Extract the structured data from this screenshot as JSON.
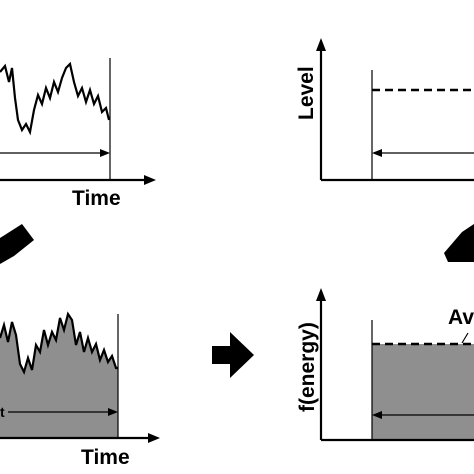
{
  "panels": {
    "top_left": {
      "xlabel": "Time"
    },
    "top_right": {
      "ylabel": "Level"
    },
    "bottom_left": {
      "xlabel": "Time",
      "interval_label": "t"
    },
    "bottom_right": {
      "ylabel": "f(energy)",
      "annotation": "Av"
    }
  },
  "colors": {
    "ink": "#000000",
    "fill": "#8f8f8f",
    "background": "#ffffff"
  },
  "icons": {
    "arrows": [
      "arrow-down-left-icon",
      "arrow-right-icon",
      "arrow-up-right-icon"
    ]
  }
}
